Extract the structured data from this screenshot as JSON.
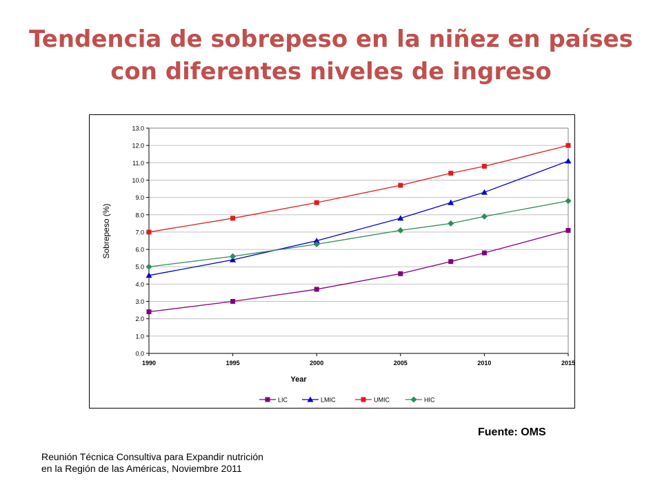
{
  "slide": {
    "title": "Tendencia de sobrepeso en la niñez en países con diferentes niveles de ingreso",
    "source": "Fuente: OMS",
    "footer": "Reunión Técnica Consultiva para Expandir nutrición en la Región de las Américas, Noviembre 2011"
  },
  "chart_data": {
    "type": "line",
    "title": "",
    "xlabel": "Year",
    "ylabel": "Sobrepeso (%)",
    "x_ticks": [
      1990,
      1995,
      2000,
      2005,
      2010,
      2015
    ],
    "y_ticks": [
      "0.0",
      "1.0",
      "2.0",
      "3.0",
      "4.0",
      "5.0",
      "6.0",
      "7.0",
      "8.0",
      "9.0",
      "10.0",
      "11.0",
      "12.0",
      "13.0"
    ],
    "xlim": [
      1990,
      2015
    ],
    "ylim": [
      0,
      13
    ],
    "grid": "horizontal",
    "legend_position": "bottom",
    "series": [
      {
        "name": "LIC",
        "color": "#800080",
        "marker": "square",
        "x": [
          1990,
          1995,
          2000,
          2005,
          2008,
          2010,
          2015
        ],
        "y": [
          2.4,
          3.0,
          3.7,
          4.6,
          5.3,
          5.8,
          7.1
        ]
      },
      {
        "name": "LMIC",
        "color": "#0000cc",
        "marker": "triangle",
        "x": [
          1990,
          1995,
          2000,
          2005,
          2008,
          2010,
          2015
        ],
        "y": [
          4.5,
          5.4,
          6.5,
          7.8,
          8.7,
          9.3,
          11.1
        ]
      },
      {
        "name": "UMIC",
        "color": "#e31a1c",
        "marker": "square",
        "x": [
          1990,
          1995,
          2000,
          2005,
          2008,
          2010,
          2015
        ],
        "y": [
          7.0,
          7.8,
          8.7,
          9.7,
          10.4,
          10.8,
          12.0
        ]
      },
      {
        "name": "HIC",
        "color": "#2e8b57",
        "marker": "diamond",
        "x": [
          1990,
          1995,
          2000,
          2005,
          2008,
          2010,
          2015
        ],
        "y": [
          5.0,
          5.6,
          6.3,
          7.1,
          7.5,
          7.9,
          8.8
        ]
      }
    ]
  }
}
